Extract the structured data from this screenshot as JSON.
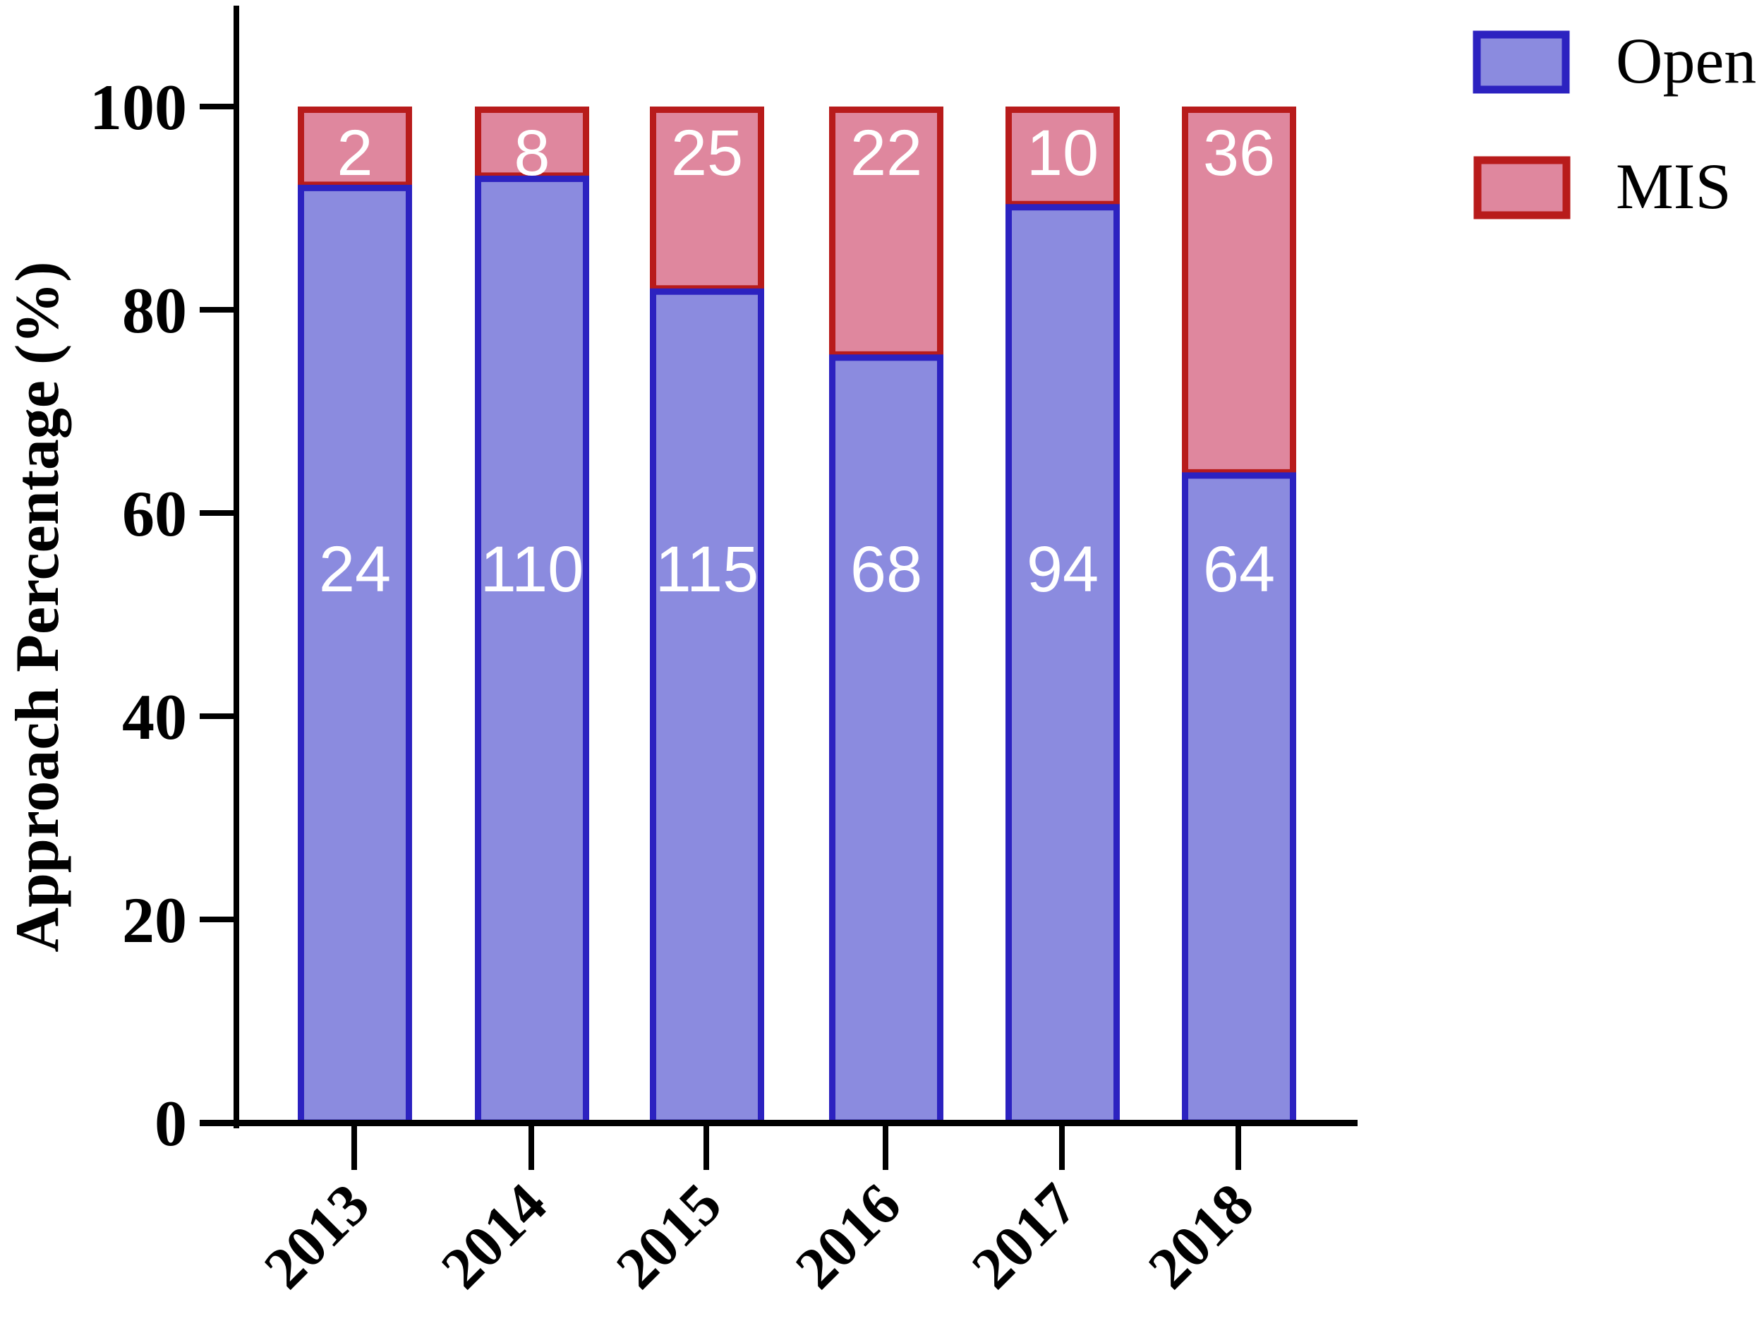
{
  "chart_data": {
    "type": "bar",
    "stacked": true,
    "normalized_percent": true,
    "title": "",
    "xlabel": "",
    "ylabel": "Approach Percentage (%)",
    "ylim": [
      0,
      110
    ],
    "yticks": [
      0,
      20,
      40,
      60,
      80,
      100
    ],
    "categories": [
      "2013",
      "2014",
      "2015",
      "2016",
      "2017",
      "2018"
    ],
    "series": [
      {
        "name": "Open",
        "fill": "#8b8bdf",
        "stroke": "#2c22c0",
        "counts": [
          24,
          110,
          115,
          68,
          94,
          64
        ],
        "values_percent": [
          92.3,
          93.2,
          82.1,
          75.6,
          90.4,
          64.0
        ]
      },
      {
        "name": "MIS",
        "fill": "#df879e",
        "stroke": "#b81b1b",
        "counts": [
          2,
          8,
          25,
          22,
          10,
          36
        ],
        "values_percent": [
          7.7,
          6.8,
          17.9,
          24.4,
          9.6,
          36.0
        ]
      }
    ],
    "legend": {
      "position": "top-right",
      "entries": [
        "Open",
        "MIS"
      ]
    },
    "grid": false,
    "x_tick_rotation": -45
  },
  "axis": {
    "ylabel": "Approach Percentage (%)",
    "ytick_labels": [
      "0",
      "20",
      "40",
      "60",
      "80",
      "100"
    ]
  },
  "legend": {
    "open_label": "Open",
    "mis_label": "MIS"
  }
}
